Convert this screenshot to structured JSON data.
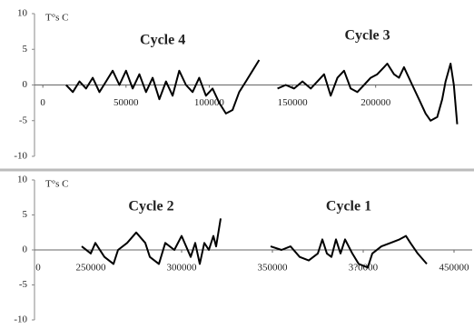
{
  "chart_data": [
    {
      "type": "line",
      "y_label": "T°s C",
      "xlim": [
        -5000,
        258000
      ],
      "ylim": [
        -10,
        10
      ],
      "yticks": [
        -10,
        -5,
        0,
        5,
        10
      ],
      "xticks": [
        0,
        50000,
        100000,
        150000,
        200000
      ],
      "series": [
        {
          "name": "Cycle 4",
          "color": "#000000",
          "x": [
            14000,
            18000,
            22000,
            26000,
            30000,
            34000,
            38000,
            42000,
            46000,
            50000,
            54000,
            58000,
            62000,
            66000,
            70000,
            74000,
            78000,
            82000,
            86000,
            90000,
            94000,
            98000,
            102000,
            106000,
            110000,
            114000,
            118000,
            122000,
            126000,
            130000
          ],
          "values": [
            0,
            -1,
            0.5,
            -0.5,
            1,
            -1,
            0.5,
            2,
            0,
            2,
            -0.5,
            1.5,
            -1,
            1,
            -2,
            0.5,
            -1.5,
            2,
            0,
            -1,
            1,
            -1.5,
            -0.5,
            -2.5,
            -4,
            -3.5,
            -1,
            0.5,
            2,
            3.5
          ]
        },
        {
          "name": "Cycle 3",
          "color": "#000000",
          "x": [
            141000,
            146000,
            151000,
            156000,
            161000,
            165000,
            169000,
            173000,
            177000,
            181000,
            185000,
            189000,
            193000,
            197000,
            201000,
            205000,
            207000,
            211000,
            214000,
            217000,
            222000,
            226000,
            230000,
            233000,
            237000,
            240000,
            242000,
            245000,
            247000,
            249000
          ],
          "values": [
            -0.5,
            0,
            -0.5,
            0.5,
            -0.5,
            0.5,
            1.5,
            -1.5,
            1,
            2,
            -0.5,
            -1,
            0,
            1,
            1.5,
            2.5,
            3,
            1.5,
            1,
            2.5,
            0,
            -2,
            -4,
            -5,
            -4.5,
            -2,
            0.5,
            3,
            0,
            -5.5
          ]
        }
      ]
    },
    {
      "type": "line",
      "y_label": "T°s C",
      "x_origin_label": "0",
      "xlim": [
        219000,
        460000
      ],
      "ylim": [
        -10,
        10
      ],
      "yticks": [
        -10,
        -5,
        0,
        5,
        10
      ],
      "xticks": [
        250000,
        300000,
        350000,
        {
          "value": 400000,
          "label": "3?0000"
        },
        450000
      ],
      "series": [
        {
          "name": "Cycle 2",
          "color": "#000000",
          "x": [
            245000,
            250000,
            252500,
            257500,
            262500,
            265000,
            270000,
            275000,
            280000,
            282500,
            287500,
            291000,
            296000,
            300000,
            305000,
            307500,
            310000,
            312500,
            315000,
            317500,
            319000,
            321500
          ],
          "values": [
            0.5,
            -0.5,
            1,
            -1,
            -2,
            0,
            1,
            2.5,
            1,
            -1,
            -2,
            1,
            0,
            2,
            -1,
            1,
            -2,
            1,
            0,
            2,
            0.5,
            4.5
          ]
        },
        {
          "name": "Cycle 1",
          "color": "#000000",
          "x": [
            349000,
            355000,
            360000,
            365000,
            370000,
            375000,
            377500,
            380000,
            382500,
            385000,
            387500,
            390000,
            394000,
            397500,
            402500,
            405000,
            410000,
            415000,
            420000,
            423500,
            426000,
            430000,
            435000
          ],
          "values": [
            0.5,
            0,
            0.5,
            -1,
            -1.5,
            -0.5,
            1.5,
            -0.5,
            -1,
            1.5,
            -0.5,
            1.5,
            -0.5,
            -2,
            -2.5,
            -0.5,
            0.5,
            1,
            1.5,
            2,
            1,
            -0.5,
            -2
          ]
        }
      ]
    }
  ]
}
